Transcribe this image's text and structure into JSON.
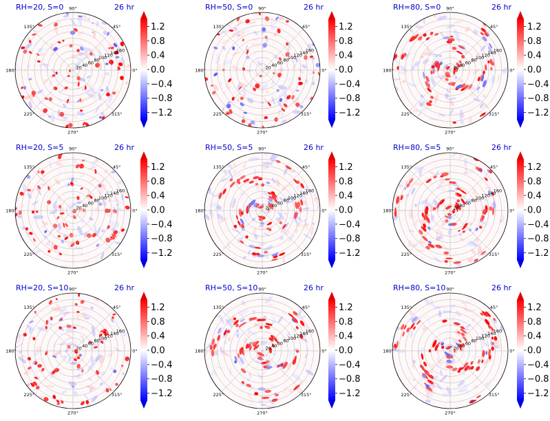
{
  "chart_data": [
    {
      "type": "heatmap",
      "projection": "polar",
      "title": "RH=20, S=0",
      "time_label": "26 hr",
      "rh": 20,
      "s": 0,
      "structure": "scattered",
      "r_ticks": [
        20,
        40,
        60,
        80,
        100,
        120,
        140,
        160
      ],
      "theta_ticks": [
        "90°",
        "45°",
        "0°",
        "315°",
        "270°",
        "225°",
        "180°",
        "135°"
      ],
      "colorbar": {
        "ticks": [
          "1.2",
          "0.8",
          "0.4",
          "0.0",
          "−0.4",
          "−0.8",
          "−1.2"
        ],
        "range": [
          -1.4,
          1.4
        ],
        "colormap": "bwr"
      }
    },
    {
      "type": "heatmap",
      "projection": "polar",
      "title": "RH=50, S=0",
      "time_label": "26 hr",
      "rh": 50,
      "s": 0,
      "structure": "scattered",
      "r_ticks": [
        20,
        40,
        60,
        80,
        100,
        120,
        140,
        160
      ],
      "theta_ticks": [
        "90°",
        "45°",
        "0°",
        "315°",
        "270°",
        "225°",
        "180°",
        "135°"
      ],
      "colorbar": {
        "ticks": [
          "1.2",
          "0.8",
          "0.4",
          "0.0",
          "−0.4",
          "−0.8",
          "−1.2"
        ],
        "range": [
          -1.4,
          1.4
        ],
        "colormap": "bwr"
      }
    },
    {
      "type": "heatmap",
      "projection": "polar",
      "title": "RH=80, S=0",
      "time_label": "26 hr",
      "rh": 80,
      "s": 0,
      "structure": "organized",
      "r_ticks": [
        20,
        40,
        60,
        80,
        100,
        120,
        140,
        160
      ],
      "theta_ticks": [
        "90°",
        "45°",
        "0°",
        "315°",
        "270°",
        "225°",
        "180°",
        "135°"
      ],
      "colorbar": {
        "ticks": [
          "1.2",
          "0.8",
          "0.4",
          "0.0",
          "−0.4",
          "−0.8",
          "−1.2"
        ],
        "range": [
          -1.4,
          1.4
        ],
        "colormap": "bwr"
      }
    },
    {
      "type": "heatmap",
      "projection": "polar",
      "title": "RH=20, S=5",
      "time_label": "26 hr",
      "rh": 20,
      "s": 5,
      "structure": "scattered",
      "r_ticks": [
        20,
        40,
        60,
        80,
        100,
        120,
        140,
        160
      ],
      "theta_ticks": [
        "90°",
        "45°",
        "0°",
        "315°",
        "270°",
        "225°",
        "180°",
        "135°"
      ],
      "colorbar": {
        "ticks": [
          "1.2",
          "0.8",
          "0.4",
          "0.0",
          "−0.4",
          "−0.8",
          "−1.2"
        ],
        "range": [
          -1.4,
          1.4
        ],
        "colormap": "bwr"
      }
    },
    {
      "type": "heatmap",
      "projection": "polar",
      "title": "RH=50, S=5",
      "time_label": "26 hr",
      "rh": 50,
      "s": 5,
      "structure": "organized",
      "r_ticks": [
        20,
        40,
        60,
        80,
        100,
        120,
        140,
        160
      ],
      "theta_ticks": [
        "90°",
        "45°",
        "0°",
        "315°",
        "270°",
        "225°",
        "180°",
        "135°"
      ],
      "colorbar": {
        "ticks": [
          "1.2",
          "0.8",
          "0.4",
          "0.0",
          "−0.4",
          "−0.8",
          "−1.2"
        ],
        "range": [
          -1.4,
          1.4
        ],
        "colormap": "bwr"
      }
    },
    {
      "type": "heatmap",
      "projection": "polar",
      "title": "RH=80, S=5",
      "time_label": "26 hr",
      "rh": 80,
      "s": 5,
      "structure": "organized",
      "r_ticks": [
        20,
        40,
        60,
        80,
        100,
        120,
        140,
        160
      ],
      "theta_ticks": [
        "90°",
        "45°",
        "0°",
        "315°",
        "270°",
        "225°",
        "180°",
        "135°"
      ],
      "colorbar": {
        "ticks": [
          "1.2",
          "0.8",
          "0.4",
          "0.0",
          "−0.4",
          "−0.8",
          "−1.2"
        ],
        "range": [
          -1.4,
          1.4
        ],
        "colormap": "bwr"
      }
    },
    {
      "type": "heatmap",
      "projection": "polar",
      "title": "RH=20, S=10",
      "time_label": "26 hr",
      "rh": 20,
      "s": 10,
      "structure": "scattered",
      "r_ticks": [
        20,
        40,
        60,
        80,
        100,
        120,
        140,
        160
      ],
      "theta_ticks": [
        "90°",
        "45°",
        "0°",
        "315°",
        "270°",
        "225°",
        "180°",
        "135°"
      ],
      "colorbar": {
        "ticks": [
          "1.2",
          "0.8",
          "0.4",
          "0.0",
          "−0.4",
          "−0.8",
          "−1.2"
        ],
        "range": [
          -1.4,
          1.4
        ],
        "colormap": "bwr"
      }
    },
    {
      "type": "heatmap",
      "projection": "polar",
      "title": "RH=50, S=10",
      "time_label": "26 hr",
      "rh": 50,
      "s": 10,
      "structure": "organized",
      "r_ticks": [
        20,
        40,
        60,
        80,
        100,
        120,
        140,
        160
      ],
      "theta_ticks": [
        "90°",
        "45°",
        "0°",
        "315°",
        "270°",
        "225°",
        "180°",
        "135°"
      ],
      "colorbar": {
        "ticks": [
          "1.2",
          "0.8",
          "0.4",
          "0.0",
          "−0.4",
          "−0.8",
          "−1.2"
        ],
        "range": [
          -1.4,
          1.4
        ],
        "colormap": "bwr"
      }
    },
    {
      "type": "heatmap",
      "projection": "polar",
      "title": "RH=80, S=10",
      "time_label": "26 hr",
      "rh": 80,
      "s": 10,
      "structure": "organized",
      "r_ticks": [
        20,
        40,
        60,
        80,
        100,
        120,
        140,
        160
      ],
      "theta_ticks": [
        "90°",
        "45°",
        "0°",
        "315°",
        "270°",
        "225°",
        "180°",
        "135°"
      ],
      "colorbar": {
        "ticks": [
          "1.2",
          "0.8",
          "0.4",
          "0.0",
          "−0.4",
          "−0.8",
          "−1.2"
        ],
        "range": [
          -1.4,
          1.4
        ],
        "colormap": "bwr"
      }
    }
  ],
  "colors": {
    "title": "#0000cc",
    "positive": "#ff0000",
    "negative": "#0000ff",
    "neutral": "#ffffff",
    "grid": "#b0b0b0"
  }
}
